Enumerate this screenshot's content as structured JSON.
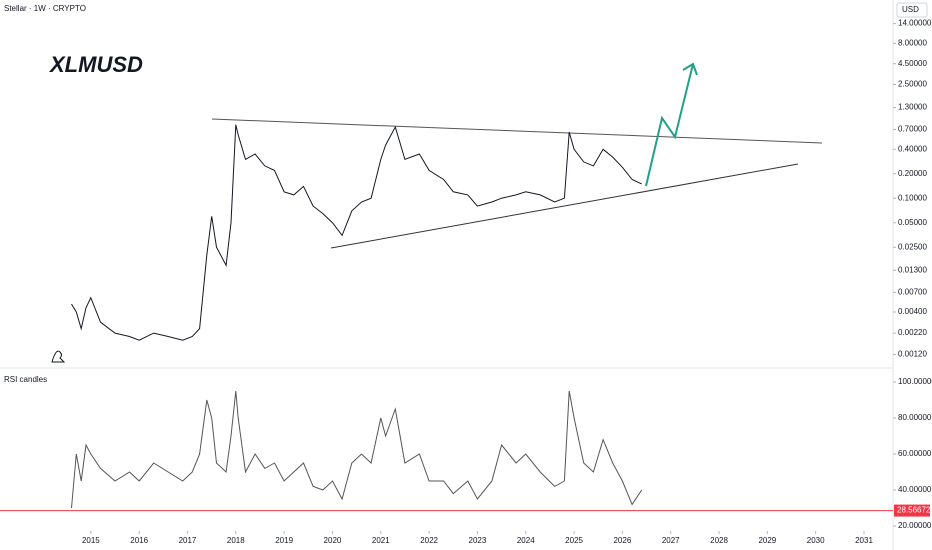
{
  "chart_data": {
    "type": "line",
    "header": "Stellar · 1W · CRYPTO",
    "title": "XLMUSD",
    "currency": "USD",
    "log_scale": true,
    "x": [
      2014.6,
      2014.7,
      2014.8,
      2014.9,
      2015.0,
      2015.2,
      2015.5,
      2015.8,
      2016.0,
      2016.3,
      2016.6,
      2016.9,
      2017.1,
      2017.25,
      2017.4,
      2017.5,
      2017.6,
      2017.8,
      2017.9,
      2018.0,
      2018.05,
      2018.2,
      2018.4,
      2018.6,
      2018.8,
      2019.0,
      2019.2,
      2019.4,
      2019.6,
      2019.8,
      2020.0,
      2020.2,
      2020.4,
      2020.6,
      2020.8,
      2021.0,
      2021.1,
      2021.3,
      2021.5,
      2021.8,
      2022.0,
      2022.3,
      2022.5,
      2022.8,
      2023.0,
      2023.3,
      2023.5,
      2023.8,
      2024.0,
      2024.3,
      2024.6,
      2024.8,
      2024.9,
      2025.0,
      2025.2,
      2025.4,
      2025.6,
      2025.8,
      2026.0,
      2026.2,
      2026.4
    ],
    "series": [
      {
        "name": "XLMUSD",
        "color": "#131722",
        "values": [
          0.005,
          0.004,
          0.0025,
          0.0045,
          0.006,
          0.003,
          0.0022,
          0.002,
          0.0018,
          0.0022,
          0.002,
          0.0018,
          0.002,
          0.0025,
          0.02,
          0.06,
          0.025,
          0.015,
          0.05,
          0.8,
          0.6,
          0.3,
          0.35,
          0.25,
          0.22,
          0.12,
          0.11,
          0.14,
          0.08,
          0.065,
          0.05,
          0.035,
          0.07,
          0.09,
          0.1,
          0.3,
          0.45,
          0.75,
          0.3,
          0.35,
          0.22,
          0.17,
          0.12,
          0.11,
          0.08,
          0.09,
          0.1,
          0.11,
          0.12,
          0.11,
          0.09,
          0.1,
          0.65,
          0.4,
          0.28,
          0.25,
          0.4,
          0.32,
          0.24,
          0.17,
          0.15
        ]
      }
    ],
    "xlim": [
      2013.12,
      2031.6
    ],
    "xticks": [
      2015,
      2016,
      2017,
      2018,
      2019,
      2020,
      2021,
      2022,
      2023,
      2024,
      2025,
      2026,
      2027,
      2028,
      2029,
      2030,
      2031
    ],
    "ylim": [
      0.001,
      20
    ],
    "yticks": [
      {
        "value": 14,
        "label": "14.00000"
      },
      {
        "value": 8,
        "label": "8.00000"
      },
      {
        "value": 4.5,
        "label": "4.50000"
      },
      {
        "value": 2.5,
        "label": "2.50000"
      },
      {
        "value": 1.3,
        "label": "1.30000"
      },
      {
        "value": 0.7,
        "label": "0.70000"
      },
      {
        "value": 0.4,
        "label": "0.40000"
      },
      {
        "value": 0.2,
        "label": "0.20000"
      },
      {
        "value": 0.1,
        "label": "0.10000"
      },
      {
        "value": 0.05,
        "label": "0.05000"
      },
      {
        "value": 0.025,
        "label": "0.02500"
      },
      {
        "value": 0.013,
        "label": "0.01300"
      },
      {
        "value": 0.007,
        "label": "0.00700"
      },
      {
        "value": 0.004,
        "label": "0.00400"
      },
      {
        "value": 0.0022,
        "label": "0.00220"
      },
      {
        "value": 0.0012,
        "label": "0.00120"
      }
    ],
    "rsi": {
      "name": "RSI candles",
      "color": "#555555",
      "values": [
        30,
        60,
        45,
        65,
        60,
        52,
        45,
        50,
        45,
        55,
        50,
        45,
        50,
        60,
        90,
        80,
        55,
        50,
        70,
        95,
        80,
        50,
        60,
        52,
        55,
        45,
        50,
        55,
        42,
        40,
        45,
        35,
        55,
        60,
        55,
        80,
        70,
        85,
        55,
        60,
        45,
        45,
        38,
        45,
        35,
        45,
        65,
        55,
        60,
        50,
        42,
        45,
        95,
        80,
        55,
        50,
        68,
        55,
        45,
        32,
        40
      ],
      "ylim": [
        20,
        100
      ],
      "yticks": [
        {
          "value": 100,
          "label": "100.00000"
        },
        {
          "value": 80,
          "label": "80.00000"
        },
        {
          "value": 60,
          "label": "60.00000"
        },
        {
          "value": 40,
          "label": "40.00000"
        },
        {
          "value": 20,
          "label": "20.00000"
        }
      ],
      "level": {
        "value": 28.56672,
        "label": "28.56672"
      },
      "level_color": "#f23645"
    }
  }
}
